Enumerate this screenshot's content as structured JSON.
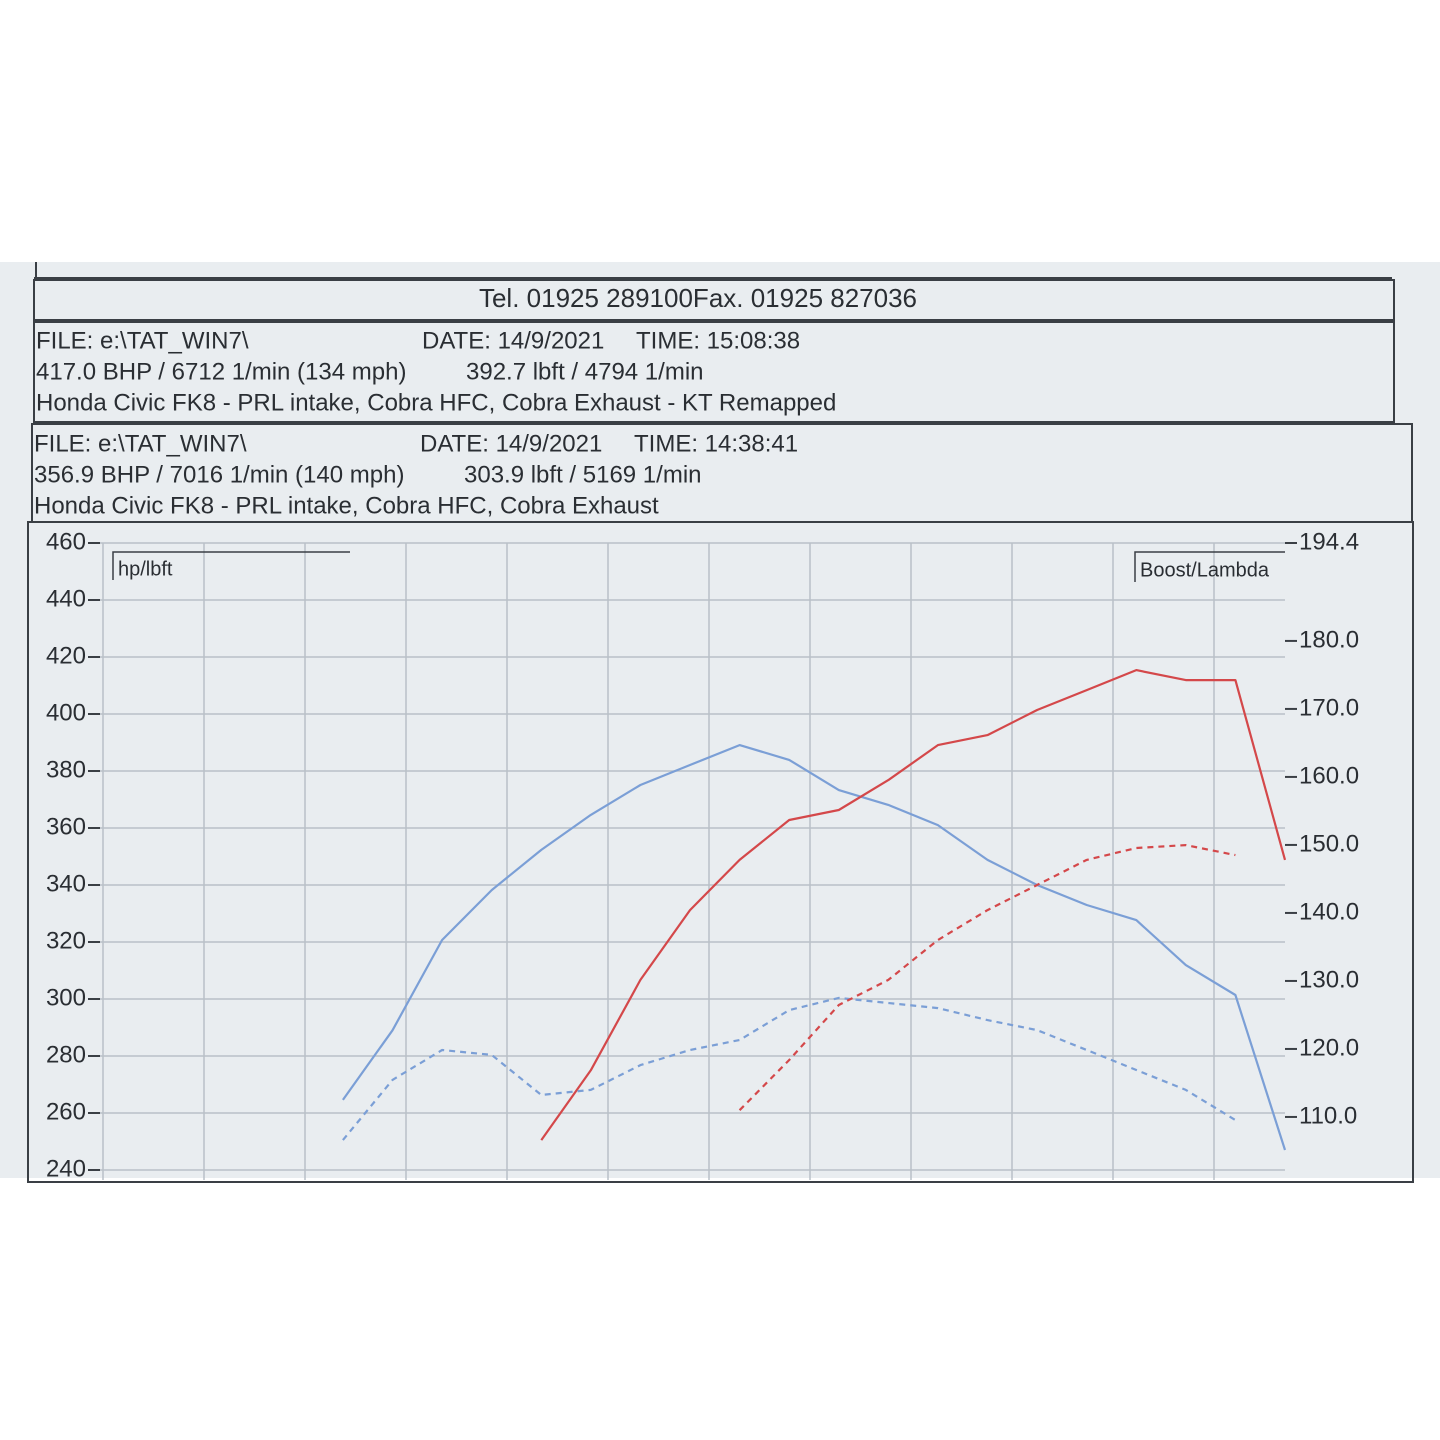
{
  "header": {
    "contact": "Tel. 01925 289100Fax. 01925 827036",
    "runs": [
      {
        "file": "FILE: e:\\TAT_WIN7\\",
        "date": "DATE: 14/9/2021",
        "time": "TIME: 15:08:38",
        "power": "417.0 BHP / 6712 1/min (134 mph)",
        "torque": "392.7 lbft / 4794 1/min",
        "description": "Honda Civic FK8 - PRL intake, Cobra HFC, Cobra Exhaust - KT Remapped"
      },
      {
        "file": "FILE: e:\\TAT_WIN7\\",
        "date": "DATE: 14/9/2021",
        "time": "TIME: 14:38:41",
        "power": "356.9 BHP / 7016 1/min (140 mph)",
        "torque": "303.9 lbft / 5169 1/min",
        "description": "Honda Civic FK8 - PRL intake, Cobra HFC, Cobra Exhaust"
      }
    ]
  },
  "chart_data": {
    "type": "line",
    "y_label": "hp/lbft",
    "y2_label": "Boost/Lambda",
    "categories": [
      null,
      null,
      null,
      null,
      null,
      null,
      null,
      null,
      null,
      null,
      null,
      null,
      null,
      null,
      null,
      null,
      null,
      null,
      null,
      null,
      null,
      null,
      null,
      null,
      null
    ],
    "ylim": [
      240,
      460
    ],
    "yticks": [
      240,
      260,
      280,
      300,
      320,
      340,
      360,
      380,
      400,
      420,
      440,
      460
    ],
    "y2lim": [
      102.2,
      194.4
    ],
    "y2ticks": [
      {
        "value": 110,
        "label": "110.0"
      },
      {
        "value": 120,
        "label": "120.0"
      },
      {
        "value": 130,
        "label": "130.0"
      },
      {
        "value": 140,
        "label": "140.0"
      },
      {
        "value": 150,
        "label": "150.0"
      },
      {
        "value": 160,
        "label": "160.0"
      },
      {
        "value": 170,
        "label": "170.0"
      },
      {
        "value": 180,
        "label": "180.0"
      },
      194.4
    ],
    "grid": true,
    "series": [
      {
        "color": "#7b9fd6",
        "dashed": false,
        "values": [
          null,
          null,
          null,
          null,
          null,
          264.6,
          289,
          320.7,
          338.2,
          352.3,
          364.6,
          375.1,
          382.1,
          389.1,
          383.9,
          373.3,
          368.1,
          361,
          348.8,
          340,
          333,
          327.7,
          311.9,
          301.4,
          247
        ]
      },
      {
        "color": "#d4484a",
        "dashed": false,
        "values": [
          null,
          null,
          null,
          null,
          null,
          null,
          null,
          null,
          null,
          250.5,
          275,
          306.7,
          331.2,
          348.8,
          362.8,
          366.3,
          376.8,
          389.1,
          392.6,
          401.4,
          408.4,
          415.4,
          411.9,
          411.9,
          348.8
        ]
      },
      {
        "color": "#7b9fd6",
        "dashed": true,
        "values": [
          null,
          null,
          null,
          null,
          null,
          250.5,
          271.6,
          282.1,
          280.4,
          266.3,
          268.1,
          276.8,
          282.1,
          285.6,
          296.1,
          300.4,
          298.6,
          296.8,
          292.6,
          289.1,
          282.1,
          275.1,
          268.1,
          257.5,
          null
        ]
      },
      {
        "color": "#d4484a",
        "dashed": true,
        "values": [
          null,
          null,
          null,
          null,
          null,
          null,
          null,
          null,
          null,
          null,
          null,
          null,
          null,
          261,
          278.6,
          297.9,
          306.7,
          320.7,
          331.2,
          340,
          348.8,
          353,
          354,
          350.5,
          null
        ]
      }
    ]
  }
}
